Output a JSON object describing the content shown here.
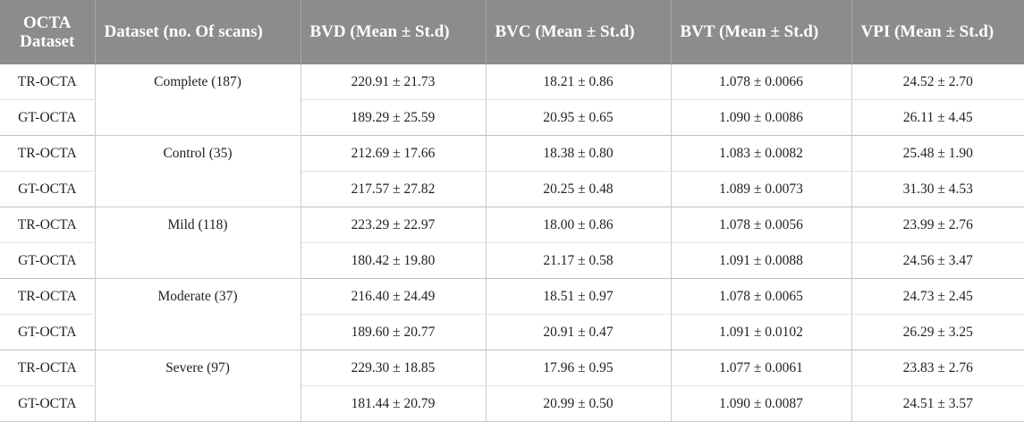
{
  "headers": [
    "OCTA Dataset",
    "Dataset (no. Of scans)",
    "BVD (Mean ± St.d)",
    "BVC (Mean ± St.d)",
    "BVT (Mean ± St.d)",
    "VPI (Mean ± St.d)"
  ],
  "groups": [
    {
      "name": "Complete (187)",
      "rows": [
        {
          "label": "TR-OCTA",
          "bvd": "220.91 ± 21.73",
          "bvc": "18.21 ± 0.86",
          "bvt": "1.078 ± 0.0066",
          "vpi": "24.52 ± 2.70"
        },
        {
          "label": "GT-OCTA",
          "bvd": "189.29 ± 25.59",
          "bvc": "20.95 ± 0.65",
          "bvt": "1.090 ± 0.0086",
          "vpi": "26.11 ± 4.45"
        }
      ]
    },
    {
      "name": "Control (35)",
      "rows": [
        {
          "label": "TR-OCTA",
          "bvd": "212.69 ± 17.66",
          "bvc": "18.38 ± 0.80",
          "bvt": "1.083 ± 0.0082",
          "vpi": "25.48 ± 1.90"
        },
        {
          "label": "GT-OCTA",
          "bvd": "217.57 ± 27.82",
          "bvc": "20.25 ± 0.48",
          "bvt": "1.089 ± 0.0073",
          "vpi": "31.30 ± 4.53"
        }
      ]
    },
    {
      "name": "Mild (118)",
      "rows": [
        {
          "label": "TR-OCTA",
          "bvd": "223.29 ± 22.97",
          "bvc": "18.00 ± 0.86",
          "bvt": "1.078 ± 0.0056",
          "vpi": "23.99 ± 2.76"
        },
        {
          "label": "GT-OCTA",
          "bvd": "180.42 ± 19.80",
          "bvc": "21.17 ± 0.58",
          "bvt": "1.091 ± 0.0088",
          "vpi": "24.56 ± 3.47"
        }
      ]
    },
    {
      "name": "Moderate (37)",
      "rows": [
        {
          "label": "TR-OCTA",
          "bvd": "216.40 ± 24.49",
          "bvc": "18.51 ± 0.97",
          "bvt": "1.078 ± 0.0065",
          "vpi": "24.73 ± 2.45"
        },
        {
          "label": "GT-OCTA",
          "bvd": "189.60 ± 20.77",
          "bvc": "20.91 ± 0.47",
          "bvt": "1.091 ± 0.0102",
          "vpi": "26.29 ± 3.25"
        }
      ]
    },
    {
      "name": "Severe (97)",
      "rows": [
        {
          "label": "TR-OCTA",
          "bvd": "229.30 ± 18.85",
          "bvc": "17.96 ± 0.95",
          "bvt": "1.077 ± 0.0061",
          "vpi": "23.83 ± 2.76"
        },
        {
          "label": "GT-OCTA",
          "bvd": "181.44 ± 20.79",
          "bvc": "20.99 ± 0.50",
          "bvt": "1.090 ± 0.0087",
          "vpi": "24.51 ± 3.57"
        }
      ]
    }
  ]
}
